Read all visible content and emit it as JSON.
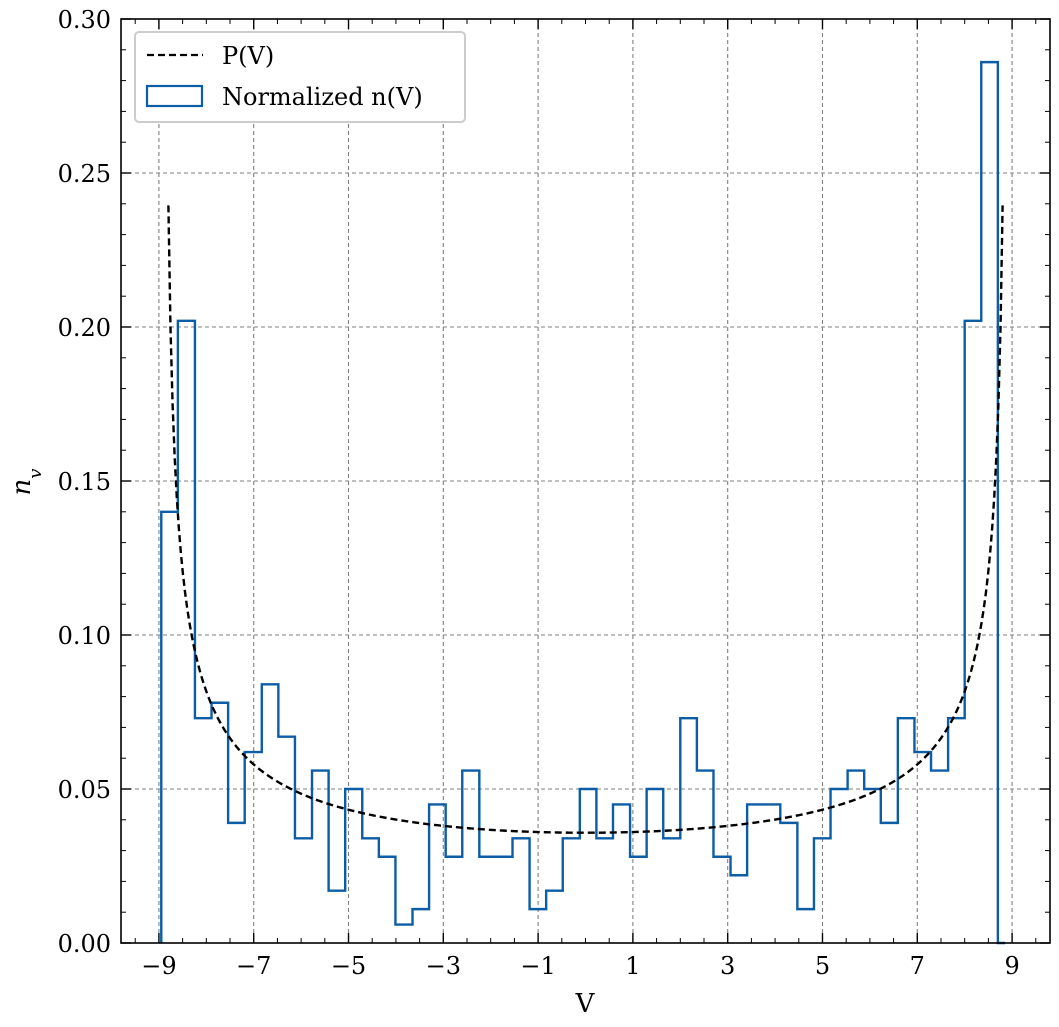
{
  "chart_data": {
    "type": "histogram",
    "xlabel": "V",
    "ylabel": "n_v",
    "xlim": [
      -9.8,
      9.8
    ],
    "ylim": [
      0,
      0.3
    ],
    "xticks": [
      -9,
      -7,
      -5,
      -3,
      -1,
      1,
      3,
      5,
      7,
      9
    ],
    "xtick_labels": [
      "−9",
      "−7",
      "−5",
      "−3",
      "−1",
      "1",
      "3",
      "5",
      "7",
      "9"
    ],
    "yticks": [
      0,
      0.05,
      0.1,
      0.15,
      0.2,
      0.25,
      0.3
    ],
    "ytick_labels": [
      "0.00",
      "0.05",
      "0.10",
      "0.15",
      "0.20",
      "0.25",
      "0.30"
    ],
    "grid": true,
    "legend_position": "top-left",
    "legend": [
      {
        "label": "P(V)",
        "style": "dashed",
        "color": "#000000"
      },
      {
        "label": "Normalized n(V)",
        "style": "step",
        "color": "#0C5DA5"
      }
    ],
    "histogram": {
      "name": "Normalized n(V)",
      "color": "#0C5DA5",
      "bin_edges": [
        -8.95,
        -8.6,
        -8.24,
        -7.89,
        -7.54,
        -7.19,
        -6.83,
        -6.48,
        -6.13,
        -5.77,
        -5.42,
        -5.07,
        -4.71,
        -4.36,
        -4.01,
        -3.65,
        -3.3,
        -2.95,
        -2.6,
        -2.24,
        -1.89,
        -1.54,
        -1.18,
        -0.83,
        -0.48,
        -0.12,
        0.23,
        0.58,
        0.94,
        1.29,
        1.64,
        2.0,
        2.35,
        2.7,
        3.06,
        3.41,
        3.76,
        4.11,
        4.47,
        4.82,
        5.17,
        5.53,
        5.88,
        6.23,
        6.59,
        6.94,
        7.29,
        7.65,
        8.0,
        8.35,
        8.7,
        8.85
      ],
      "values": [
        0.14,
        0.202,
        0.073,
        0.078,
        0.039,
        0.062,
        0.084,
        0.067,
        0.034,
        0.056,
        0.017,
        0.05,
        0.034,
        0.028,
        0.006,
        0.011,
        0.045,
        0.028,
        0.056,
        0.028,
        0.028,
        0.034,
        0.011,
        0.017,
        0.034,
        0.05,
        0.034,
        0.045,
        0.028,
        0.05,
        0.034,
        0.073,
        0.056,
        0.028,
        0.022,
        0.045,
        0.045,
        0.039,
        0.011,
        0.034,
        0.05,
        0.056,
        0.05,
        0.039,
        0.073,
        0.062,
        0.056,
        0.073,
        0.202,
        0.286,
        0.0
      ]
    },
    "curve": {
      "name": "P(V)",
      "color": "#000000",
      "amplitude": 8.9,
      "x_range": [
        -8.8,
        8.8
      ],
      "scale": 0.0358
    }
  }
}
